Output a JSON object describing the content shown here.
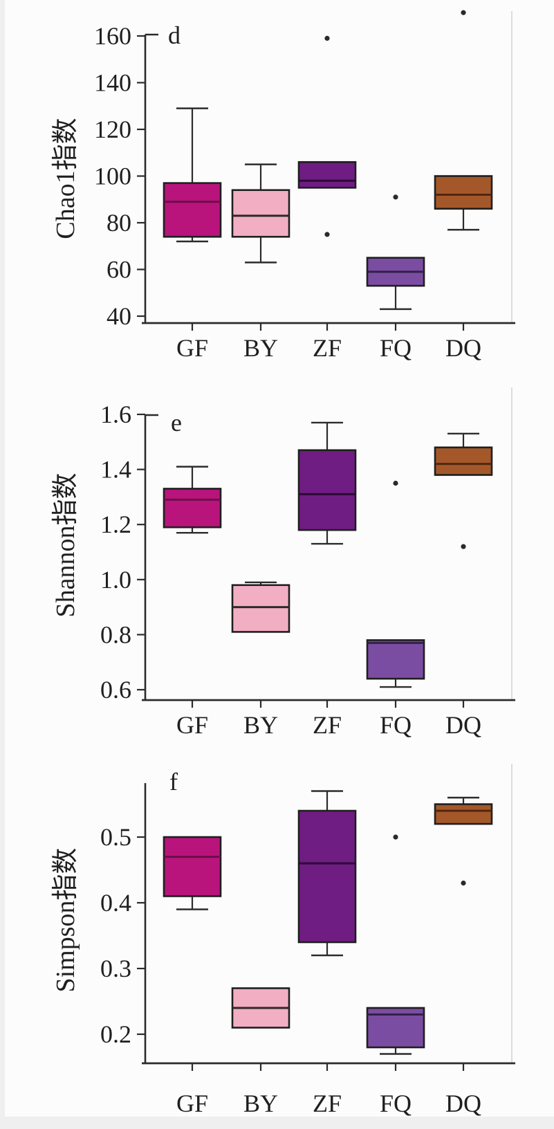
{
  "page": {
    "background": "#fcfcfc",
    "axis_color": "#2b2b2b",
    "outlier_color": "#2a2a2a"
  },
  "chart_data": [
    {
      "type": "box",
      "panel_letter": "d",
      "ylabel": "Chao1指数",
      "categories": [
        "GF",
        "BY",
        "ZF",
        "FQ",
        "DQ"
      ],
      "yticks": [
        {
          "label": "160",
          "value": 160
        },
        {
          "label": "140",
          "value": 140
        },
        {
          "label": "120",
          "value": 120
        },
        {
          "label": "100",
          "value": 100
        },
        {
          "label": "80",
          "value": 80
        },
        {
          "label": "60",
          "value": 60
        },
        {
          "label": "40",
          "value": 40
        }
      ],
      "ylim": [
        37,
        161
      ],
      "grid": false,
      "series": [
        {
          "name": "GF",
          "color": "#b8147c",
          "median_color": "#6e0d4a",
          "q1": 74,
          "median": 89,
          "q3": 97,
          "whisker_low": 72,
          "whisker_high": 129,
          "outliers": []
        },
        {
          "name": "BY",
          "color": "#f2aec3",
          "median_color": "#2a2a2a",
          "q1": 74,
          "median": 83,
          "q3": 94,
          "whisker_low": 63,
          "whisker_high": 105,
          "outliers": []
        },
        {
          "name": "ZF",
          "color": "#6f1d82",
          "median_color": "#2d0b36",
          "q1": 95,
          "median": 98,
          "q3": 106,
          "outliers": [
            159,
            75
          ]
        },
        {
          "name": "FQ",
          "color": "#7b4da2",
          "median_color": "#33204a",
          "q1": 53,
          "median": 59,
          "q3": 65,
          "whisker_low": 43,
          "outliers": [
            91
          ]
        },
        {
          "name": "DQ",
          "color": "#a4582a",
          "median_color": "#52260e",
          "q1": 86,
          "median": 92,
          "q3": 100,
          "whisker_low": 77,
          "outliers": [
            170
          ]
        }
      ]
    },
    {
      "type": "box",
      "panel_letter": "e",
      "ylabel": "Shannon指数",
      "categories": [
        "GF",
        "BY",
        "ZF",
        "FQ",
        "DQ"
      ],
      "yticks": [
        {
          "label": "1.6",
          "value": 1.6
        },
        {
          "label": "1.4",
          "value": 1.4
        },
        {
          "label": "1.2",
          "value": 1.2
        },
        {
          "label": "1.0",
          "value": 1.0
        },
        {
          "label": "0.8",
          "value": 0.8
        },
        {
          "label": "0.6",
          "value": 0.6
        }
      ],
      "ylim": [
        0.56,
        1.61
      ],
      "grid": false,
      "series": [
        {
          "name": "GF",
          "color": "#b8147c",
          "median_color": "#6e0d4a",
          "q1": 1.19,
          "median": 1.29,
          "q3": 1.33,
          "whisker_low": 1.17,
          "whisker_high": 1.41,
          "outliers": []
        },
        {
          "name": "BY",
          "color": "#f2aec3",
          "median_color": "#2a2a2a",
          "q1": 0.81,
          "median": 0.9,
          "q3": 0.98,
          "whisker_high": 0.99,
          "outliers": []
        },
        {
          "name": "ZF",
          "color": "#6f1d82",
          "median_color": "#2d0b36",
          "q1": 1.18,
          "median": 1.31,
          "q3": 1.47,
          "whisker_low": 1.13,
          "whisker_high": 1.57,
          "outliers": []
        },
        {
          "name": "FQ",
          "color": "#7b4da2",
          "median_color": "#33204a",
          "q1": 0.64,
          "median": 0.77,
          "q3": 0.78,
          "whisker_low": 0.61,
          "outliers": [
            1.35
          ]
        },
        {
          "name": "DQ",
          "color": "#a4582a",
          "median_color": "#52260e",
          "q1": 1.38,
          "median": 1.42,
          "q3": 1.48,
          "whisker_high": 1.53,
          "outliers": [
            1.12
          ]
        }
      ]
    },
    {
      "type": "box",
      "panel_letter": "f",
      "ylabel": "Simpson指数",
      "categories": [
        "GF",
        "BY",
        "ZF",
        "FQ",
        "DQ"
      ],
      "yticks": [
        {
          "label": "0.5",
          "value": 0.5
        },
        {
          "label": "0.4",
          "value": 0.4
        },
        {
          "label": "0.3",
          "value": 0.3
        },
        {
          "label": "0.2",
          "value": 0.2
        }
      ],
      "ylim": [
        0.155,
        0.58
      ],
      "grid": false,
      "series": [
        {
          "name": "GF",
          "color": "#b8147c",
          "median_color": "#6e0d4a",
          "q1": 0.41,
          "median": 0.47,
          "q3": 0.5,
          "whisker_low": 0.39,
          "outliers": []
        },
        {
          "name": "BY",
          "color": "#f2aec3",
          "median_color": "#2a2a2a",
          "q1": 0.21,
          "median": 0.24,
          "q3": 0.27,
          "outliers": []
        },
        {
          "name": "ZF",
          "color": "#6f1d82",
          "median_color": "#2d0b36",
          "q1": 0.34,
          "median": 0.46,
          "q3": 0.54,
          "whisker_low": 0.32,
          "whisker_high": 0.57,
          "outliers": []
        },
        {
          "name": "FQ",
          "color": "#7b4da2",
          "median_color": "#33204a",
          "q1": 0.18,
          "median": 0.23,
          "q3": 0.24,
          "whisker_low": 0.17,
          "outliers": [
            0.5
          ]
        },
        {
          "name": "DQ",
          "color": "#a4582a",
          "median_color": "#52260e",
          "q1": 0.52,
          "median": 0.54,
          "q3": 0.55,
          "whisker_high": 0.56,
          "outliers": [
            0.43
          ]
        }
      ]
    }
  ]
}
